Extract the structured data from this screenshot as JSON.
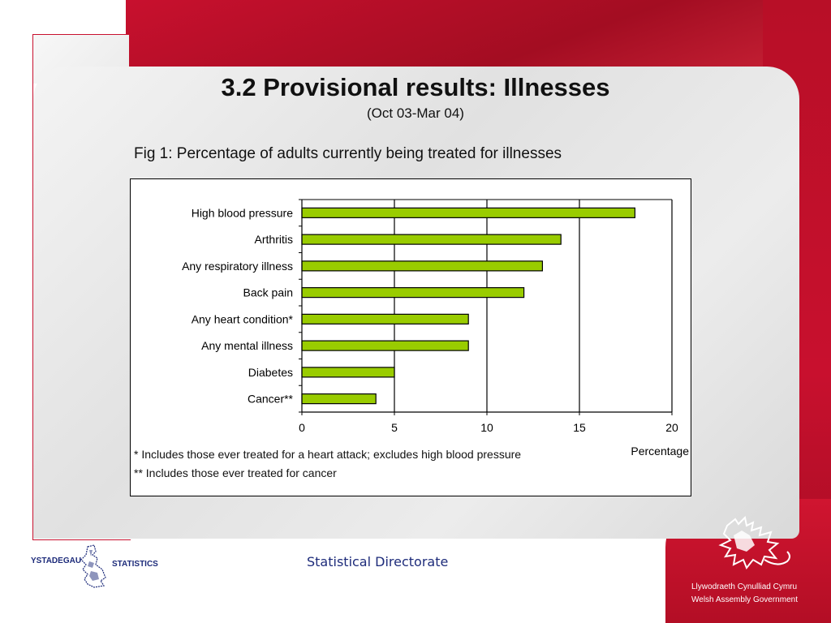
{
  "header": {
    "title": "3.2 Provisional results: Illnesses",
    "subtitle": "(Oct 03-Mar 04)"
  },
  "figure": {
    "caption": "Fig 1: Percentage of adults currently being treated for illnesses"
  },
  "chart_data": {
    "type": "bar",
    "orientation": "horizontal",
    "categories": [
      "High blood pressure",
      "Arthritis",
      "Any respiratory illness",
      "Back pain",
      "Any heart condition*",
      "Any mental illness",
      "Diabetes",
      "Cancer**"
    ],
    "values": [
      18,
      14,
      13,
      12,
      9,
      9,
      5,
      4
    ],
    "xlabel": "Percentage",
    "ylabel": "",
    "xlim": [
      0,
      20
    ],
    "xticks": [
      0,
      5,
      10,
      15,
      20
    ],
    "grid": "vertical",
    "bar_color": "#99cc00"
  },
  "notes": {
    "note1": "*  Includes those ever treated for a heart attack; excludes high blood pressure",
    "note2": "** Includes those ever treated for cancer"
  },
  "footer": {
    "directorate": "Statistical Directorate",
    "ons_logo_text_left": "YSTADEGAU",
    "ons_logo_text_right": "STATISTICS",
    "wag_line1": "Llywodraeth Cynulliad Cymru",
    "wag_line2": "Welsh Assembly Government"
  },
  "colors": {
    "brand_red": "#c8102e",
    "bar_green": "#99cc00",
    "directorate_blue": "#1d2b7a"
  }
}
